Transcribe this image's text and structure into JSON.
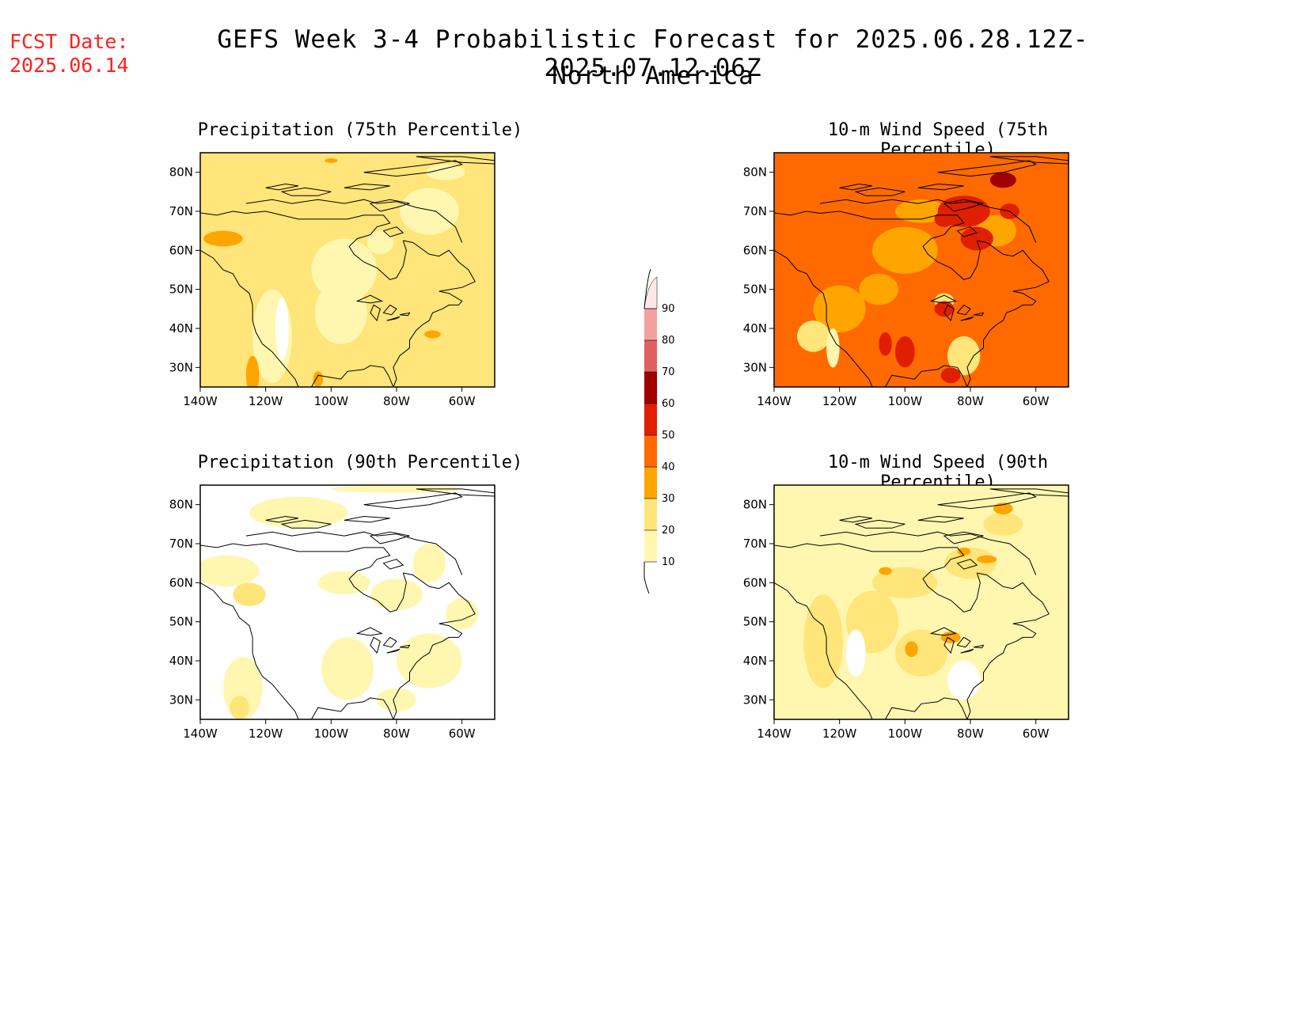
{
  "header": {
    "fcst_label": "FCST Date:",
    "fcst_date": "2025.06.14",
    "title": "GEFS Week 3-4 Probabilistic Forecast for 2025.06.28.12Z-2025.07.12.06Z",
    "subtitle": "North America"
  },
  "panels": [
    {
      "id": "precip75",
      "title": "Precipitation (75th Percentile)",
      "level": "mostly 20-30, scattered 30-40"
    },
    {
      "id": "wind75",
      "title": "10-m Wind Speed (75th Percentile)",
      "level": "mostly 30-50, patches 50-70"
    },
    {
      "id": "precip90",
      "title": "Precipitation (90th Percentile)",
      "level": "mostly below 10 to 10-20"
    },
    {
      "id": "wind90",
      "title": "10-m Wind Speed (90th Percentile)",
      "level": "mostly 10-30, patches 30-50"
    }
  ],
  "axes": {
    "lat_ticks": [
      "30N",
      "40N",
      "50N",
      "60N",
      "70N",
      "80N"
    ],
    "lon_ticks": [
      "140W",
      "120W",
      "100W",
      "80W",
      "60W"
    ]
  },
  "colorbar": {
    "levels": [
      "10",
      "20",
      "30",
      "40",
      "50",
      "60",
      "70",
      "80",
      "90"
    ],
    "colors": [
      "#fff7b0",
      "#ffe57a",
      "#ffa500",
      "#ff6a00",
      "#e01e00",
      "#a00000",
      "#e06060",
      "#f4a0a0",
      "#fde8e8"
    ]
  },
  "fill_colors": {
    "lt10": "#ffffff",
    "c10": "#fff7b0",
    "c20": "#ffe57a",
    "c30": "#ffa500",
    "c40": "#ff6a00",
    "c50": "#e01e00",
    "c60": "#a00000"
  }
}
